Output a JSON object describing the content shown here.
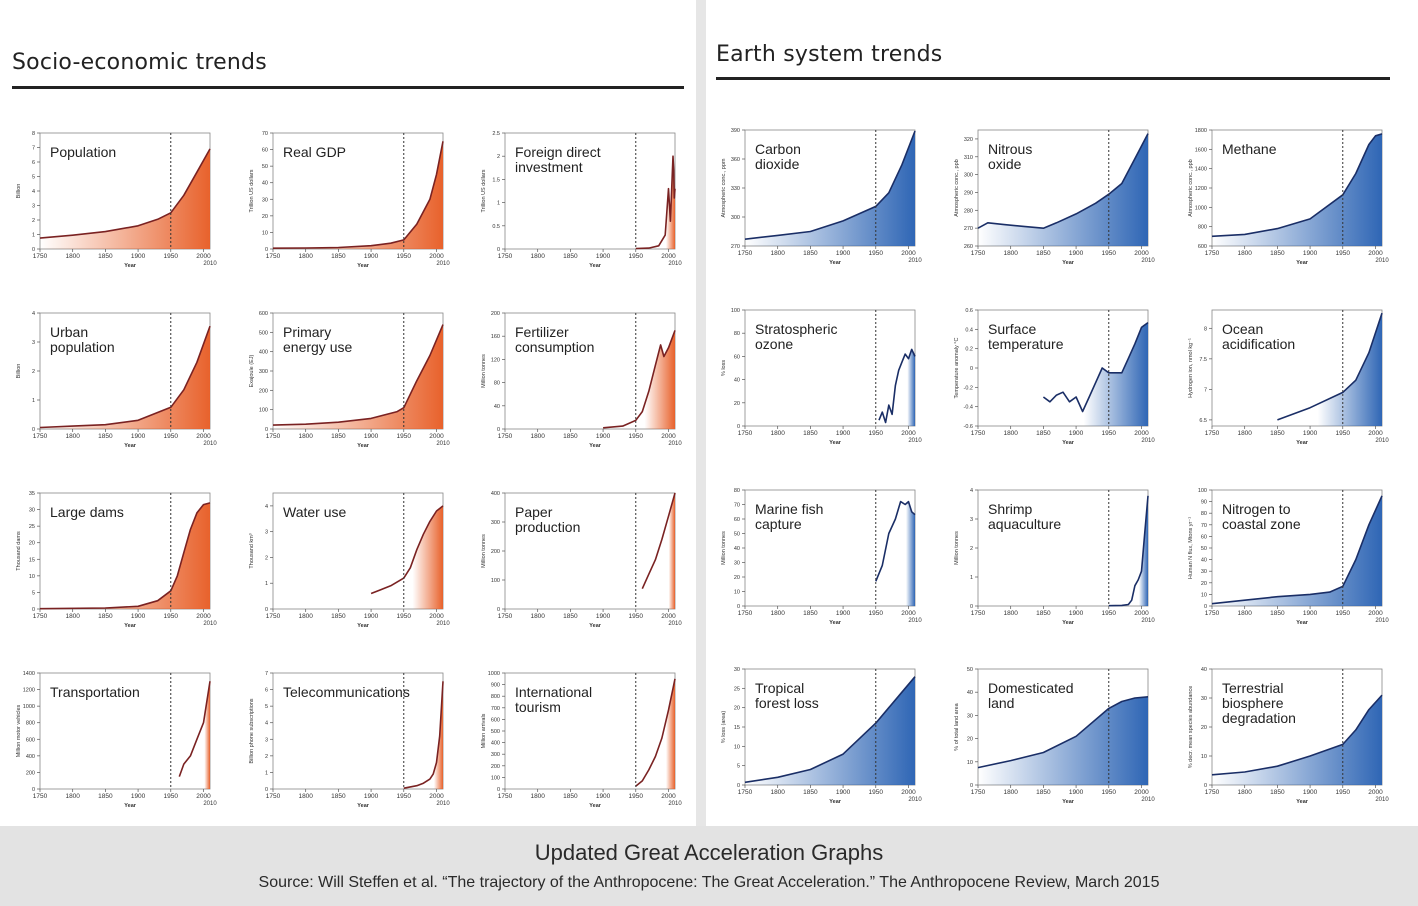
{
  "header": {
    "left_title": "Socio-economic trends",
    "right_title": "Earth system trends"
  },
  "footer": {
    "title": "Updated Great Acceleration Graphs",
    "source": "Source: Will Steffen et al. “The trajectory of the Anthropocene: The Great Acceleration.” The Anthropocene Review, March 2015"
  },
  "colors": {
    "socio": "#e8622c",
    "earth": "#2f66b5",
    "socio_line": "#7a2222",
    "earth_line": "#1a2e66"
  },
  "chart_data": [
    {
      "id": "population",
      "type": "area",
      "theme": "socio",
      "title": [
        "Population"
      ],
      "ylabel": "Billion",
      "xlabel": "Year",
      "ylim": [
        0,
        8
      ],
      "yticks": [
        0,
        1,
        2,
        3,
        4,
        5,
        6,
        7,
        8
      ],
      "x": [
        1750,
        1800,
        1850,
        1900,
        1930,
        1950,
        1970,
        1990,
        2010
      ],
      "y": [
        0.75,
        0.95,
        1.2,
        1.6,
        2.05,
        2.5,
        3.7,
        5.3,
        6.9
      ]
    },
    {
      "id": "real-gdp",
      "type": "area",
      "theme": "socio",
      "title": [
        "Real GDP"
      ],
      "ylabel": "Trillion US dollars",
      "xlabel": "Year",
      "ylim": [
        0,
        70
      ],
      "yticks": [
        0,
        10,
        20,
        30,
        40,
        50,
        60,
        70
      ],
      "x": [
        1750,
        1800,
        1850,
        1900,
        1930,
        1950,
        1970,
        1990,
        2000,
        2010
      ],
      "y": [
        0.5,
        0.6,
        0.9,
        2,
        3.5,
        5.5,
        15,
        30,
        45,
        65
      ]
    },
    {
      "id": "fdi",
      "type": "area",
      "theme": "socio",
      "title": [
        "Foreign direct",
        "investment"
      ],
      "ylabel": "Trillion US dollars",
      "xlabel": "Year",
      "ylim": [
        0,
        2.5
      ],
      "yticks": [
        0,
        0.5,
        1,
        1.5,
        2,
        2.5
      ],
      "x": [
        1950,
        1970,
        1985,
        1995,
        2000,
        2003,
        2007,
        2008,
        2009,
        2010
      ],
      "y": [
        0.01,
        0.02,
        0.07,
        0.3,
        1.3,
        0.6,
        2.0,
        1.7,
        1.1,
        1.3
      ]
    },
    {
      "id": "urban-population",
      "type": "area",
      "theme": "socio",
      "title": [
        "Urban",
        "population"
      ],
      "ylabel": "Billion",
      "xlabel": "Year",
      "ylim": [
        0,
        4
      ],
      "yticks": [
        0,
        1,
        2,
        3,
        4
      ],
      "x": [
        1750,
        1800,
        1850,
        1900,
        1950,
        1970,
        1990,
        2010
      ],
      "y": [
        0.05,
        0.1,
        0.15,
        0.3,
        0.75,
        1.35,
        2.3,
        3.55
      ]
    },
    {
      "id": "primary-energy",
      "type": "area",
      "theme": "socio",
      "title": [
        "Primary",
        "energy use"
      ],
      "ylabel": "Exajoule (EJ)",
      "xlabel": "Year",
      "ylim": [
        0,
        600
      ],
      "yticks": [
        0,
        100,
        200,
        300,
        400,
        500,
        600
      ],
      "x": [
        1750,
        1800,
        1850,
        1900,
        1940,
        1950,
        1970,
        1990,
        2010
      ],
      "y": [
        20,
        25,
        35,
        55,
        90,
        110,
        250,
        380,
        540
      ]
    },
    {
      "id": "fertilizer",
      "type": "area",
      "theme": "socio",
      "title": [
        "Fertilizer",
        "consumption"
      ],
      "ylabel": "Million tonnes",
      "xlabel": "Year",
      "ylim": [
        0,
        200
      ],
      "yticks": [
        0,
        40,
        80,
        120,
        160,
        200
      ],
      "x": [
        1900,
        1930,
        1950,
        1960,
        1970,
        1980,
        1988,
        1993,
        2000,
        2010
      ],
      "y": [
        2,
        5,
        15,
        30,
        65,
        110,
        145,
        125,
        140,
        170
      ]
    },
    {
      "id": "large-dams",
      "type": "area",
      "theme": "socio",
      "title": [
        "Large dams"
      ],
      "ylabel": "Thousand dams",
      "xlabel": "Year",
      "ylim": [
        0,
        35
      ],
      "yticks": [
        0,
        5,
        10,
        15,
        20,
        25,
        30,
        35
      ],
      "x": [
        1750,
        1850,
        1900,
        1930,
        1950,
        1960,
        1970,
        1980,
        1990,
        2000,
        2010
      ],
      "y": [
        0.1,
        0.3,
        0.8,
        2.5,
        5.5,
        10,
        17,
        24,
        29,
        31.5,
        32
      ]
    },
    {
      "id": "water-use",
      "type": "area",
      "theme": "socio",
      "title": [
        "Water use"
      ],
      "ylabel": "Thousand km³",
      "xlabel": "Year",
      "ylim": [
        0,
        4.5
      ],
      "yticks": [
        0,
        1,
        2,
        3,
        4
      ],
      "x": [
        1900,
        1930,
        1950,
        1960,
        1970,
        1980,
        1990,
        2000,
        2010
      ],
      "y": [
        0.6,
        0.9,
        1.2,
        1.6,
        2.3,
        2.9,
        3.4,
        3.8,
        4.0
      ]
    },
    {
      "id": "paper-production",
      "type": "area",
      "theme": "socio",
      "title": [
        "Paper",
        "production"
      ],
      "ylabel": "Million tonnes",
      "xlabel": "Year",
      "ylim": [
        0,
        400
      ],
      "yticks": [
        0,
        100,
        200,
        300,
        400
      ],
      "x": [
        1960,
        1970,
        1980,
        1990,
        2000,
        2010
      ],
      "y": [
        70,
        120,
        170,
        240,
        320,
        400
      ]
    },
    {
      "id": "transportation",
      "type": "area",
      "theme": "socio",
      "title": [
        "Transportation"
      ],
      "ylabel": "Million motor vehicles",
      "xlabel": "Year",
      "ylim": [
        0,
        1400
      ],
      "yticks": [
        0,
        200,
        400,
        600,
        800,
        1000,
        1200,
        1400
      ],
      "x": [
        1963,
        1970,
        1980,
        1990,
        2000,
        2010
      ],
      "y": [
        150,
        300,
        400,
        600,
        800,
        1300
      ]
    },
    {
      "id": "telecommunications",
      "type": "area",
      "theme": "socio",
      "title": [
        "Telecommunications"
      ],
      "ylabel": "Billion phone subscriptions",
      "xlabel": "Year",
      "ylim": [
        0,
        7
      ],
      "yticks": [
        0,
        1,
        2,
        3,
        4,
        5,
        6,
        7
      ],
      "x": [
        1950,
        1970,
        1980,
        1990,
        1995,
        2000,
        2005,
        2010
      ],
      "y": [
        0.05,
        0.2,
        0.35,
        0.6,
        0.9,
        1.6,
        3.2,
        6.5
      ]
    },
    {
      "id": "international-tourism",
      "type": "area",
      "theme": "socio",
      "title": [
        "International",
        "tourism"
      ],
      "ylabel": "Million arrivals",
      "xlabel": "Year",
      "ylim": [
        0,
        1000
      ],
      "yticks": [
        0,
        100,
        200,
        300,
        400,
        500,
        600,
        700,
        800,
        900,
        1000
      ],
      "x": [
        1950,
        1960,
        1970,
        1980,
        1990,
        2000,
        2010
      ],
      "y": [
        25,
        70,
        165,
        280,
        440,
        680,
        950
      ]
    },
    {
      "id": "carbon-dioxide",
      "type": "area",
      "theme": "earth",
      "title": [
        "Carbon",
        "dioxide"
      ],
      "ylabel": "Atmospheric conc., ppm",
      "xlabel": "Year",
      "ylim": [
        270,
        390
      ],
      "yticks": [
        270,
        300,
        330,
        360,
        390
      ],
      "x": [
        1750,
        1800,
        1850,
        1900,
        1950,
        1970,
        1990,
        2010
      ],
      "y": [
        277,
        281,
        285,
        296,
        311,
        325,
        354,
        389
      ]
    },
    {
      "id": "nitrous-oxide",
      "type": "area",
      "theme": "earth",
      "title": [
        "Nitrous",
        "oxide"
      ],
      "ylabel": "Atmospheric conc., ppb",
      "xlabel": "Year",
      "ylim": [
        260,
        325
      ],
      "yticks": [
        260,
        270,
        280,
        290,
        300,
        310,
        320
      ],
      "x": [
        1750,
        1765,
        1790,
        1820,
        1850,
        1870,
        1900,
        1930,
        1950,
        1970,
        1990,
        2010
      ],
      "y": [
        270,
        273,
        272,
        271,
        270,
        273,
        278,
        284,
        289,
        295,
        309,
        323
      ]
    },
    {
      "id": "methane",
      "type": "area",
      "theme": "earth",
      "title": [
        "Methane"
      ],
      "ylabel": "Atmospheric conc., ppb",
      "xlabel": "Year",
      "ylim": [
        600,
        1800
      ],
      "yticks": [
        600,
        800,
        1000,
        1200,
        1400,
        1600,
        1800
      ],
      "x": [
        1750,
        1800,
        1850,
        1900,
        1950,
        1970,
        1990,
        2000,
        2010
      ],
      "y": [
        700,
        720,
        780,
        880,
        1130,
        1350,
        1650,
        1740,
        1760
      ]
    },
    {
      "id": "stratospheric-ozone",
      "type": "area",
      "theme": "earth",
      "title": [
        "Stratospheric",
        "ozone"
      ],
      "ylabel": "% loss",
      "xlabel": "Year",
      "ylim": [
        0,
        100
      ],
      "yticks": [
        0,
        20,
        40,
        60,
        80,
        100
      ],
      "x": [
        1955,
        1960,
        1965,
        1970,
        1975,
        1980,
        1985,
        1990,
        1995,
        2000,
        2005,
        2010
      ],
      "y": [
        5,
        12,
        3,
        18,
        10,
        35,
        48,
        55,
        62,
        58,
        66,
        60
      ]
    },
    {
      "id": "surface-temperature",
      "type": "area",
      "theme": "earth",
      "title": [
        "Surface",
        "temperature"
      ],
      "ylabel": "Temperature anomaly °C",
      "xlabel": "Year",
      "ylim": [
        -0.6,
        0.6
      ],
      "yticks": [
        -0.6,
        -0.4,
        -0.2,
        0,
        0.2,
        0.4,
        0.6
      ],
      "x": [
        1850,
        1860,
        1870,
        1880,
        1890,
        1900,
        1910,
        1920,
        1940,
        1950,
        1960,
        1970,
        1980,
        1990,
        2000,
        2010
      ],
      "y": [
        -0.3,
        -0.35,
        -0.28,
        -0.25,
        -0.35,
        -0.3,
        -0.45,
        -0.3,
        0.0,
        -0.05,
        -0.05,
        -0.05,
        0.1,
        0.25,
        0.42,
        0.47
      ]
    },
    {
      "id": "ocean-acidification",
      "type": "area",
      "theme": "earth",
      "title": [
        "Ocean",
        "acidification"
      ],
      "ylabel": "Hydrogen ion, nmol kg⁻¹",
      "xlabel": "Year",
      "ylim": [
        6.4,
        8.3
      ],
      "yticks": [
        6.5,
        7.0,
        7.5,
        8.0
      ],
      "x": [
        1850,
        1900,
        1950,
        1970,
        1990,
        2010
      ],
      "y": [
        6.5,
        6.7,
        6.95,
        7.15,
        7.6,
        8.25
      ]
    },
    {
      "id": "marine-fish-capture",
      "type": "area",
      "theme": "earth",
      "title": [
        "Marine fish",
        "capture"
      ],
      "ylabel": "Million tonnes",
      "xlabel": "Year",
      "ylim": [
        0,
        80
      ],
      "yticks": [
        0,
        10,
        20,
        30,
        40,
        50,
        60,
        70,
        80
      ],
      "x": [
        1950,
        1960,
        1970,
        1980,
        1988,
        1995,
        2000,
        2005,
        2010
      ],
      "y": [
        17,
        28,
        50,
        60,
        72,
        70,
        72,
        65,
        63
      ]
    },
    {
      "id": "shrimp-aquaculture",
      "type": "area",
      "theme": "earth",
      "title": [
        "Shrimp",
        "aquaculture"
      ],
      "ylabel": "Million tonnes",
      "xlabel": "Year",
      "ylim": [
        0,
        4
      ],
      "yticks": [
        0,
        1,
        2,
        3,
        4
      ],
      "x": [
        1950,
        1970,
        1980,
        1985,
        1990,
        1995,
        2000,
        2005,
        2010
      ],
      "y": [
        0.01,
        0.02,
        0.05,
        0.2,
        0.7,
        0.9,
        1.2,
        2.5,
        3.8
      ]
    },
    {
      "id": "nitrogen-coastal",
      "type": "area",
      "theme": "earth",
      "title": [
        "Nitrogen to",
        "coastal zone"
      ],
      "ylabel": "Human N flux, Mtons yr⁻¹",
      "xlabel": "Year",
      "ylim": [
        0,
        100
      ],
      "yticks": [
        0,
        10,
        20,
        30,
        40,
        50,
        60,
        70,
        80,
        90,
        100
      ],
      "x": [
        1750,
        1800,
        1850,
        1900,
        1930,
        1950,
        1970,
        1990,
        2010
      ],
      "y": [
        2,
        5,
        8,
        10,
        12,
        17,
        40,
        70,
        95
      ]
    },
    {
      "id": "tropical-forest-loss",
      "type": "area",
      "theme": "earth",
      "title": [
        "Tropical",
        "forest loss"
      ],
      "ylabel": "% loss (area)",
      "xlabel": "Year",
      "ylim": [
        0,
        30
      ],
      "yticks": [
        0,
        5,
        10,
        15,
        20,
        25,
        30
      ],
      "x": [
        1750,
        1800,
        1850,
        1900,
        1950,
        1970,
        1990,
        2010
      ],
      "y": [
        0.7,
        2,
        4,
        8,
        16,
        20,
        24,
        28
      ]
    },
    {
      "id": "domesticated-land",
      "type": "area",
      "theme": "earth",
      "title": [
        "Domesticated",
        "land"
      ],
      "ylabel": "% of total land area",
      "xlabel": "Year",
      "ylim": [
        0,
        50
      ],
      "yticks": [
        0,
        10,
        20,
        30,
        40,
        50
      ],
      "x": [
        1750,
        1800,
        1850,
        1900,
        1950,
        1970,
        1990,
        2010
      ],
      "y": [
        7.5,
        10.5,
        14,
        21,
        33,
        36,
        37.5,
        38
      ]
    },
    {
      "id": "terrestrial-biosphere",
      "type": "area",
      "theme": "earth",
      "title": [
        "Terrestrial",
        "biosphere",
        "degradation"
      ],
      "ylabel": "% decr. mean species abundance",
      "xlabel": "Year",
      "ylim": [
        0,
        40
      ],
      "yticks": [
        0,
        10,
        20,
        30,
        40
      ],
      "x": [
        1750,
        1800,
        1850,
        1900,
        1950,
        1970,
        1990,
        2010
      ],
      "y": [
        3.5,
        4.5,
        6.5,
        10,
        14,
        19,
        26,
        31
      ]
    }
  ],
  "x_axis": {
    "ticks": [
      "1750",
      "1800",
      "1850",
      "1900",
      "1950",
      "2000"
    ],
    "end_tick": "2010",
    "label": "Year"
  }
}
